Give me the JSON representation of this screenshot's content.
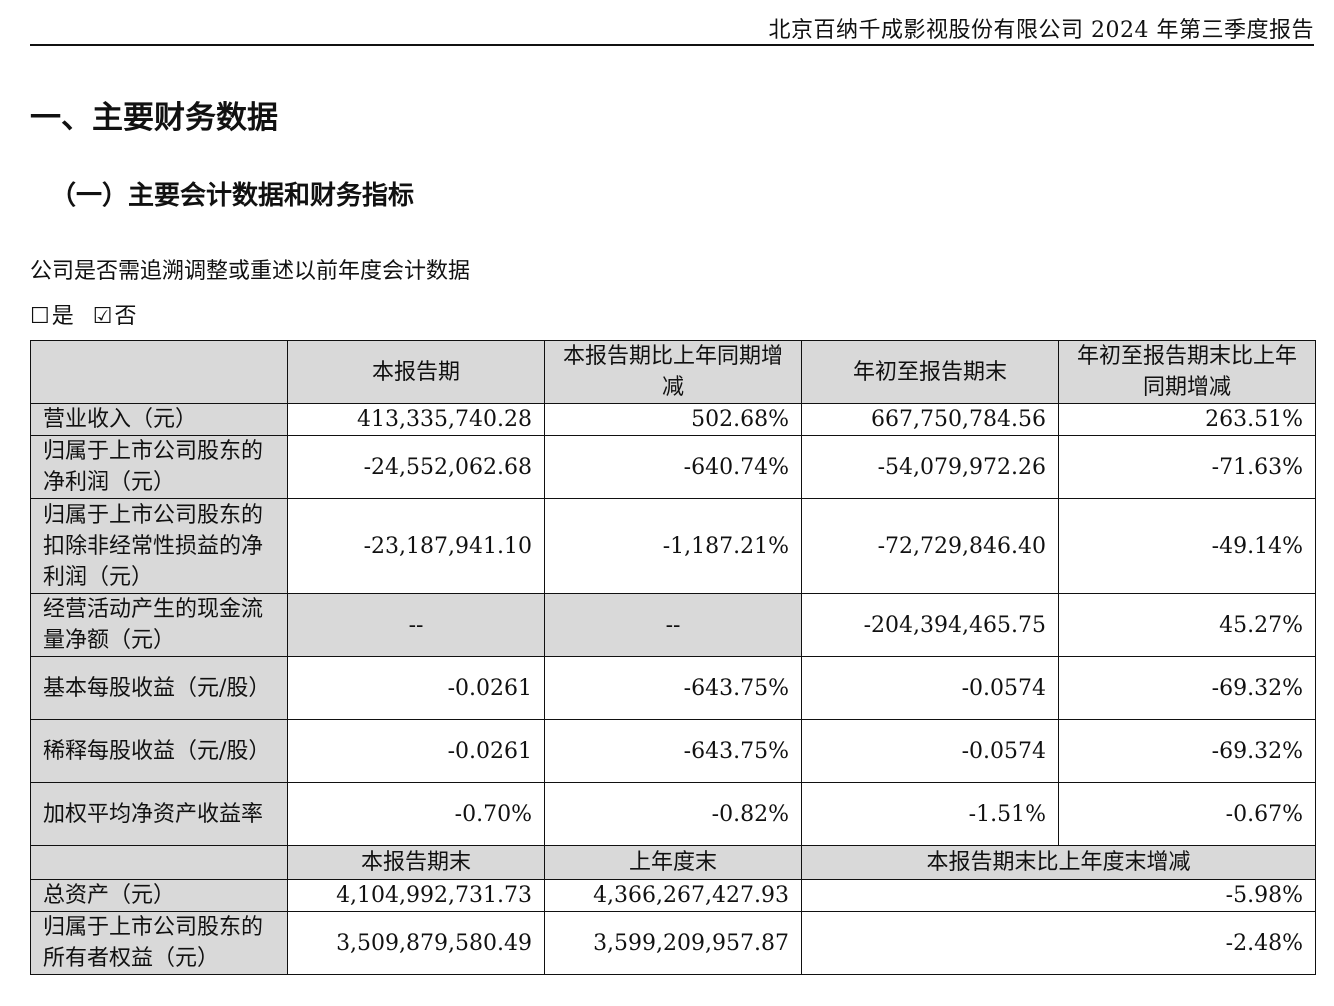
{
  "header": {
    "title": "北京百纳千成影视股份有限公司 2024 年第三季度报告"
  },
  "section": {
    "title": "一、主要财务数据"
  },
  "subsection": {
    "number": "（一）",
    "title": "主要会计数据和财务指标"
  },
  "question": {
    "text": "公司是否需追溯调整或重述以前年度会计数据"
  },
  "options": [
    {
      "box": "☐",
      "label": "是",
      "checked": false
    },
    {
      "box": "☑",
      "label": "否",
      "checked": true
    }
  ],
  "table1": {
    "headers": [
      "",
      "本报告期",
      "本报告期比上年同期增减",
      "年初至报告期末",
      "年初至报告期末比上年同期增减"
    ],
    "rows": [
      {
        "label": "营业收入（元）",
        "values": [
          "413,335,740.28",
          "502.68%",
          "667,750,784.56",
          "263.51%"
        ]
      },
      {
        "label": "归属于上市公司股东的净利润（元）",
        "values": [
          "-24,552,062.68",
          "-640.74%",
          "-54,079,972.26",
          "-71.63%"
        ]
      },
      {
        "label": "归属于上市公司股东的扣除非经常性损益的净利润（元）",
        "values": [
          "-23,187,941.10",
          "-1,187.21%",
          "-72,729,846.40",
          "-49.14%"
        ]
      },
      {
        "label": "经营活动产生的现金流量净额（元）",
        "values": [
          "--",
          "--",
          "-204,394,465.75",
          "45.27%"
        ]
      },
      {
        "label": "基本每股收益（元/股）",
        "values": [
          "-0.0261",
          "-643.75%",
          "-0.0574",
          "-69.32%"
        ]
      },
      {
        "label": "稀释每股收益（元/股）",
        "values": [
          "-0.0261",
          "-643.75%",
          "-0.0574",
          "-69.32%"
        ]
      },
      {
        "label": "加权平均净资产收益率",
        "values": [
          "-0.70%",
          "-0.82%",
          "-1.51%",
          "-0.67%"
        ]
      }
    ]
  },
  "table2": {
    "headers": [
      "",
      "本报告期末",
      "上年度末",
      "本报告期末比上年度末增减"
    ],
    "rows": [
      {
        "label": "总资产（元）",
        "values": [
          "4,104,992,731.73",
          "4,366,267,427.93",
          "-5.98%"
        ]
      },
      {
        "label": "归属于上市公司股东的所有者权益（元）",
        "values": [
          "3,509,879,580.49",
          "3,599,209,957.87",
          "-2.48%"
        ]
      }
    ]
  }
}
